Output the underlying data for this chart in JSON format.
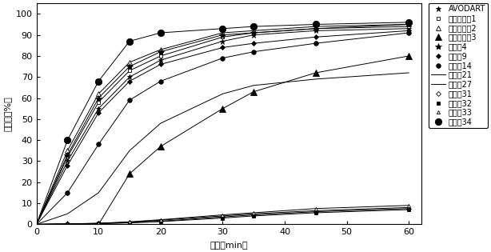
{
  "xlabel": "时间（min）",
  "ylabel": "溢出度（%）",
  "xlim": [
    0,
    62
  ],
  "ylim": [
    0,
    105
  ],
  "xticks": [
    0,
    10,
    20,
    30,
    40,
    50,
    60
  ],
  "yticks": [
    0,
    10,
    20,
    30,
    40,
    50,
    60,
    70,
    80,
    90,
    100
  ],
  "time_points": [
    0,
    5,
    10,
    15,
    20,
    30,
    35,
    45,
    60
  ],
  "figsize": [
    6.14,
    3.15
  ],
  "dpi": 100,
  "background_color": "#ffffff",
  "font_size": 8,
  "legend_fontsize": 7,
  "series_configs": [
    {
      "label": "AVODART",
      "marker": "*",
      "ms": 5,
      "mfc": "black",
      "values": [
        0,
        30,
        55,
        70,
        78,
        87,
        90,
        92,
        93
      ]
    },
    {
      "label": "比较实施例1",
      "marker": "s",
      "ms": 3,
      "mfc": "white",
      "values": [
        0,
        32,
        58,
        73,
        80,
        89,
        91,
        93,
        94
      ]
    },
    {
      "label": "比较实施例2",
      "marker": "^",
      "ms": 4,
      "mfc": "white",
      "values": [
        0,
        35,
        62,
        77,
        83,
        91,
        92,
        94,
        95
      ]
    },
    {
      "label": "比较实施例3",
      "marker": "^",
      "ms": 6,
      "mfc": "black",
      "values": [
        0,
        0,
        0,
        24,
        37,
        55,
        63,
        72,
        80
      ]
    },
    {
      "label": "实施例4",
      "marker": "*",
      "ms": 6,
      "mfc": "black",
      "values": [
        0,
        33,
        60,
        75,
        82,
        90,
        91,
        93,
        95
      ]
    },
    {
      "label": "实施例9",
      "marker": "D",
      "ms": 3,
      "mfc": "black",
      "values": [
        0,
        28,
        53,
        68,
        76,
        84,
        86,
        89,
        92
      ]
    },
    {
      "label": "实施例14",
      "marker": "o",
      "ms": 4,
      "mfc": "black",
      "values": [
        0,
        15,
        38,
        59,
        68,
        79,
        82,
        86,
        91
      ]
    },
    {
      "label": "实施例21",
      "marker": "None",
      "ms": 3,
      "mfc": "black",
      "values": [
        0,
        5,
        15,
        35,
        48,
        62,
        66,
        69,
        72
      ]
    },
    {
      "label": "实施例27",
      "marker": "None",
      "ms": 3,
      "mfc": "black",
      "values": [
        0,
        0.2,
        0.5,
        1.0,
        2.0,
        4.0,
        5.0,
        6.5,
        8.0
      ]
    },
    {
      "label": "实施例31",
      "marker": "D",
      "ms": 3,
      "mfc": "white",
      "values": [
        0,
        0.2,
        0.4,
        0.8,
        1.5,
        3.5,
        4.5,
        6.0,
        7.5
      ]
    },
    {
      "label": "实施例32",
      "marker": "s",
      "ms": 3,
      "mfc": "black",
      "values": [
        0,
        0.15,
        0.35,
        0.7,
        1.3,
        3.0,
        4.0,
        5.5,
        7.0
      ]
    },
    {
      "label": "实施例33",
      "marker": "^",
      "ms": 3,
      "mfc": "white",
      "values": [
        0,
        0.25,
        0.5,
        1.2,
        2.2,
        4.5,
        5.5,
        7.5,
        9.0
      ]
    },
    {
      "label": "实施例34",
      "marker": "o",
      "ms": 6,
      "mfc": "black",
      "values": [
        0,
        40,
        68,
        87,
        91,
        93,
        94,
        95,
        96
      ]
    }
  ]
}
